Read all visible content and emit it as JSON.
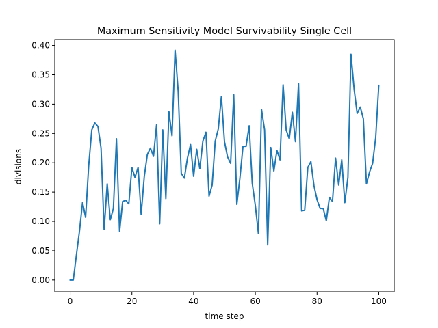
{
  "chart_data": {
    "type": "line",
    "title": "Maximum Sensitivity Model Survivability Single Cell",
    "xlabel": "time step",
    "ylabel": "divisions",
    "xlim": [
      -5,
      105
    ],
    "ylim": [
      -0.02,
      0.41
    ],
    "xticks": [
      0,
      20,
      40,
      60,
      80,
      100
    ],
    "yticks": [
      0.0,
      0.05,
      0.1,
      0.15,
      0.2,
      0.25,
      0.3,
      0.35,
      0.4
    ],
    "xtick_labels": [
      "0",
      "20",
      "40",
      "60",
      "80",
      "100"
    ],
    "ytick_labels": [
      "0.00",
      "0.05",
      "0.10",
      "0.15",
      "0.20",
      "0.25",
      "0.30",
      "0.35",
      "0.40"
    ],
    "grid": false,
    "series": [
      {
        "color": "#1f77b4",
        "x": [
          0,
          1,
          2,
          3,
          4,
          5,
          6,
          7,
          8,
          9,
          10,
          11,
          12,
          13,
          14,
          15,
          16,
          17,
          18,
          19,
          20,
          21,
          22,
          23,
          24,
          25,
          26,
          27,
          28,
          29,
          30,
          31,
          32,
          33,
          34,
          35,
          36,
          37,
          38,
          39,
          40,
          41,
          42,
          43,
          44,
          45,
          46,
          47,
          48,
          49,
          50,
          51,
          52,
          53,
          54,
          55,
          56,
          57,
          58,
          59,
          60,
          61,
          62,
          63,
          64,
          65,
          66,
          67,
          68,
          69,
          70,
          71,
          72,
          73,
          74,
          75,
          76,
          77,
          78,
          79,
          80,
          81,
          82,
          83,
          84,
          85,
          86,
          87,
          88,
          89,
          90,
          91,
          92,
          93,
          94,
          95,
          96,
          97,
          98,
          99,
          100
        ],
        "y": [
          0.0,
          0.0,
          0.042,
          0.083,
          0.132,
          0.107,
          0.195,
          0.256,
          0.268,
          0.262,
          0.225,
          0.086,
          0.164,
          0.103,
          0.122,
          0.241,
          0.083,
          0.134,
          0.136,
          0.13,
          0.192,
          0.175,
          0.192,
          0.112,
          0.176,
          0.214,
          0.225,
          0.211,
          0.265,
          0.096,
          0.256,
          0.139,
          0.287,
          0.246,
          0.392,
          0.322,
          0.182,
          0.174,
          0.208,
          0.231,
          0.177,
          0.223,
          0.19,
          0.237,
          0.252,
          0.143,
          0.162,
          0.237,
          0.258,
          0.313,
          0.236,
          0.21,
          0.199,
          0.316,
          0.129,
          0.174,
          0.228,
          0.228,
          0.263,
          0.165,
          0.127,
          0.079,
          0.291,
          0.256,
          0.06,
          0.226,
          0.186,
          0.221,
          0.205,
          0.333,
          0.256,
          0.241,
          0.286,
          0.236,
          0.335,
          0.118,
          0.119,
          0.192,
          0.202,
          0.161,
          0.137,
          0.122,
          0.122,
          0.101,
          0.141,
          0.134,
          0.208,
          0.162,
          0.205,
          0.132,
          0.175,
          0.385,
          0.326,
          0.284,
          0.295,
          0.275,
          0.164,
          0.184,
          0.199,
          0.243,
          0.332
        ]
      }
    ]
  }
}
